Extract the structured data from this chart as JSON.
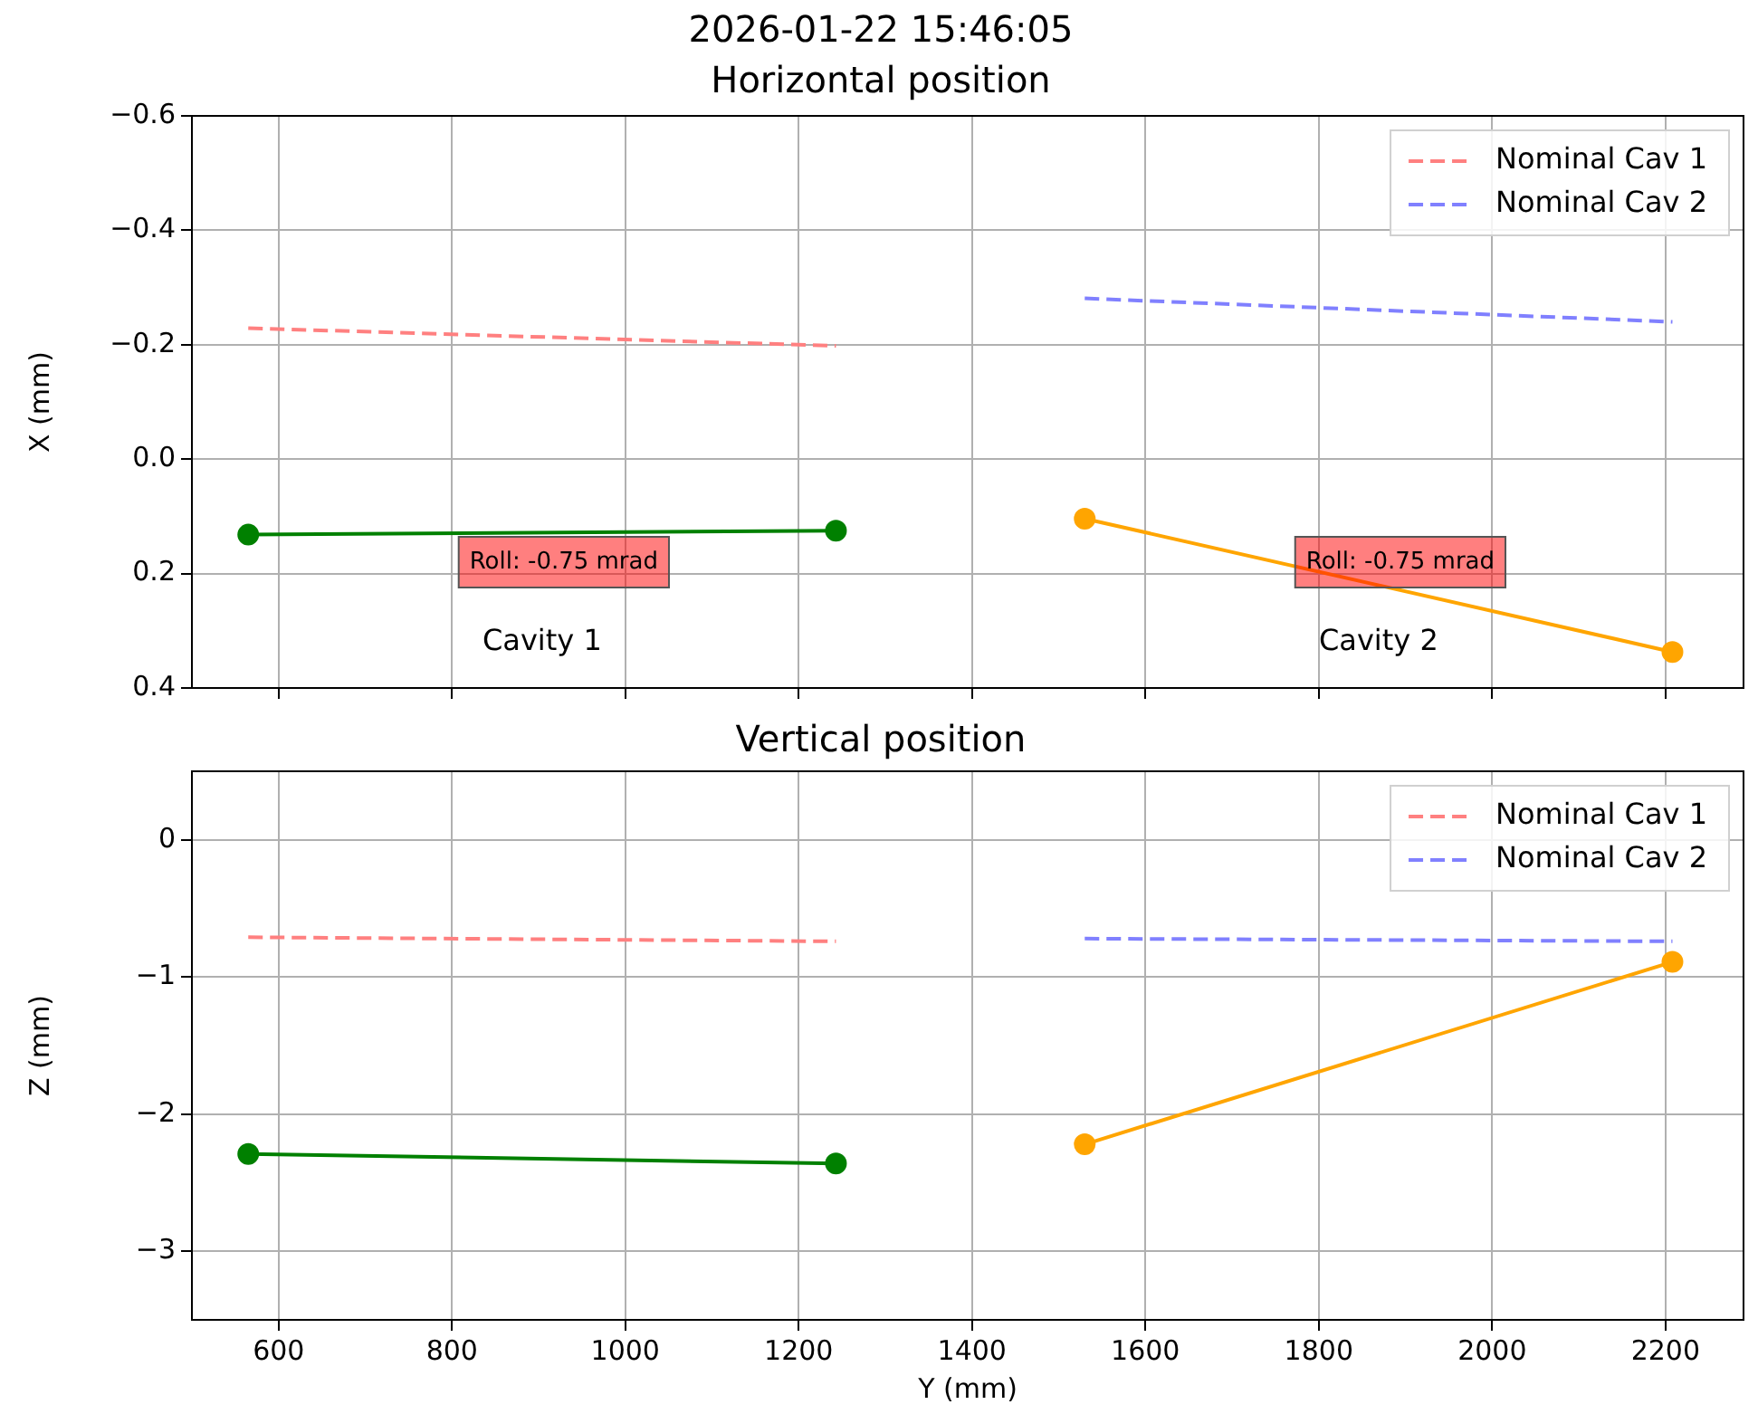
{
  "chart_data": [
    {
      "type": "line",
      "title": "2026-01-22 15:46:05",
      "subtitle": "Horizontal position",
      "ylabel": "X (mm)",
      "series": [
        {
          "name": "Nominal Cav 1",
          "color": "#ff8080",
          "x": [
            565,
            1243
          ],
          "values": [
            -0.229,
            -0.198
          ],
          "line_style": "dashed",
          "marker": "none"
        },
        {
          "name": "Nominal Cav 2",
          "color": "#8080ff",
          "x": [
            1530,
            2208
          ],
          "values": [
            -0.281,
            -0.24
          ],
          "line_style": "dashed",
          "marker": "none"
        },
        {
          "color": "#008000",
          "x": [
            565,
            1243
          ],
          "values": [
            0.132,
            0.125
          ],
          "line_style": "solid",
          "marker": "circle"
        },
        {
          "color": "#ffa500",
          "x": [
            1530,
            2208
          ],
          "values": [
            0.104,
            0.337
          ],
          "line_style": "solid",
          "marker": "circle"
        }
      ],
      "xlim": [
        500,
        2290
      ],
      "xticks": [
        600,
        800,
        1000,
        1200,
        1400,
        1600,
        1800,
        2000,
        2200
      ],
      "ylim": [
        0.4,
        -0.6
      ],
      "yticks": [
        {
          "value": -0.6,
          "label": "−0.6"
        },
        {
          "value": -0.4,
          "label": "−0.4"
        },
        {
          "value": -0.2,
          "label": "−0.2"
        },
        {
          "value": 0,
          "label": "0.0"
        },
        {
          "value": 0.2,
          "label": "0.2"
        },
        {
          "value": 0.4,
          "label": "0.4"
        }
      ],
      "annotations": [
        "Roll: -0.75 mrad",
        "Cavity 1",
        "Roll: -0.75 mrad",
        "Cavity 2"
      ],
      "grid": true,
      "legend": "top right",
      "tick_labels": "y"
    },
    {
      "type": "line",
      "title": "Vertical position",
      "xlabel": "Y (mm)",
      "ylabel": "Z (mm)",
      "series": [
        {
          "name": "Nominal Cav 1",
          "color": "#ff8080",
          "x": [
            565,
            1243
          ],
          "values": [
            -0.71,
            -0.74
          ],
          "line_style": "dashed",
          "marker": "none"
        },
        {
          "name": "Nominal Cav 2",
          "color": "#8080ff",
          "x": [
            1530,
            2208
          ],
          "values": [
            -0.72,
            -0.74
          ],
          "line_style": "dashed",
          "marker": "none"
        },
        {
          "color": "#008000",
          "x": [
            565,
            1243
          ],
          "values": [
            -2.29,
            -2.36
          ],
          "line_style": "solid",
          "marker": "circle"
        },
        {
          "color": "#ffa500",
          "x": [
            1530,
            2208
          ],
          "values": [
            -2.22,
            -0.89
          ],
          "line_style": "solid",
          "marker": "circle"
        }
      ],
      "xlim": [
        500,
        2290
      ],
      "xticks": [
        600,
        800,
        1000,
        1200,
        1400,
        1600,
        1800,
        2000,
        2200
      ],
      "ylim": [
        -3.5,
        0.5
      ],
      "yticks": [
        {
          "value": 0,
          "label": "0"
        },
        {
          "value": -1,
          "label": "−1"
        },
        {
          "value": -2,
          "label": "−2"
        },
        {
          "value": -3,
          "label": "−3"
        }
      ],
      "grid": true,
      "legend": "top right"
    }
  ]
}
